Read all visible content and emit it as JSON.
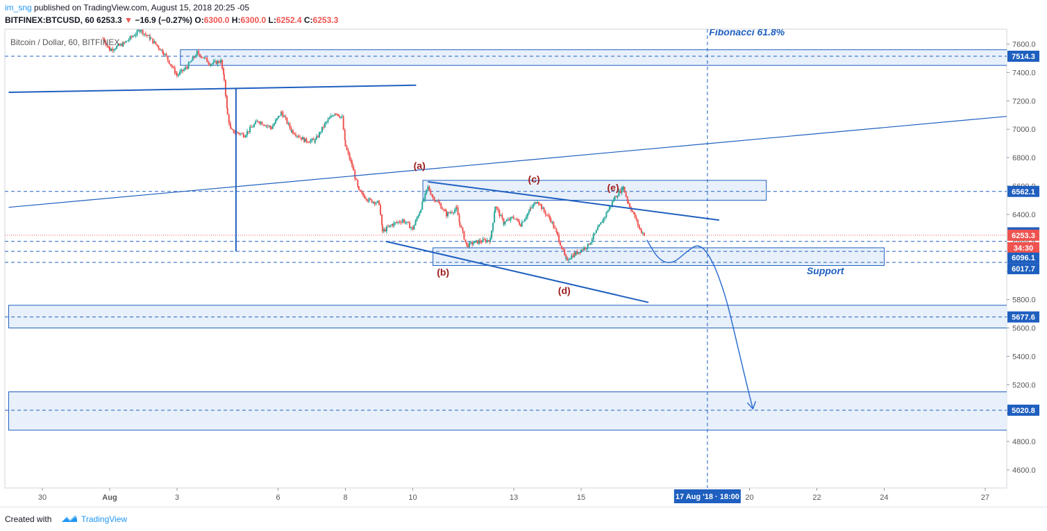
{
  "header": {
    "author": "im_sng",
    "published_text": "published on TradingView.com, August 15, 2018 20:25 -05",
    "symbol_line": "BITFINEX:BTCUSD, 60",
    "last": "6253.3",
    "change_arrow": "▼",
    "change": "−16.9 (−0.27%)",
    "o_label": "O:",
    "o_value": "6300.0",
    "h_label": "H:",
    "h_value": "6300.0",
    "l_label": "L:",
    "l_value": "6252.4",
    "c_label": "C:",
    "c_value": "6253.3"
  },
  "footer": {
    "created_with": "Created with",
    "brand": "TradingView"
  },
  "colors": {
    "up": "#26a69a",
    "down": "#ef5350",
    "drawing": "#1e5fbf",
    "zone_fill": "#e8f0fb",
    "red_label": "#9c1a1a"
  },
  "chart_data": {
    "type": "candlestick",
    "title": "Bitcoin / Dollar, 60, BITFINEX",
    "y_ticks": [
      4600,
      4800,
      5000,
      5200,
      5400,
      5600,
      5800,
      6000,
      6200,
      6400,
      6600,
      6800,
      7000,
      7200,
      7400,
      7600
    ],
    "x_ticks": [
      {
        "label": "30",
        "day": 30
      },
      {
        "label": "Aug",
        "day": 32
      },
      {
        "label": "3",
        "day": 34
      },
      {
        "label": "6",
        "day": 37
      },
      {
        "label": "8",
        "day": 39
      },
      {
        "label": "10",
        "day": 41
      },
      {
        "label": "13",
        "day": 44
      },
      {
        "label": "15",
        "day": 46
      },
      {
        "label": "20",
        "day": 51
      },
      {
        "label": "22",
        "day": 53
      },
      {
        "label": "24",
        "day": 55
      },
      {
        "label": "27",
        "day": 58
      }
    ],
    "price_path": [
      [
        31.8,
        7640
      ],
      [
        32.0,
        7560
      ],
      [
        32.4,
        7600
      ],
      [
        32.9,
        7700
      ],
      [
        33.2,
        7640
      ],
      [
        33.6,
        7540
      ],
      [
        34.0,
        7380
      ],
      [
        34.3,
        7440
      ],
      [
        34.6,
        7540
      ],
      [
        35.0,
        7460
      ],
      [
        35.3,
        7480
      ],
      [
        35.4,
        7350
      ],
      [
        35.5,
        7100
      ],
      [
        35.6,
        6990
      ],
      [
        36.0,
        6960
      ],
      [
        36.4,
        7060
      ],
      [
        36.8,
        7010
      ],
      [
        37.1,
        7120
      ],
      [
        37.4,
        6990
      ],
      [
        37.8,
        6920
      ],
      [
        38.1,
        6920
      ],
      [
        38.4,
        7040
      ],
      [
        38.7,
        7120
      ],
      [
        38.9,
        7080
      ],
      [
        39.0,
        6880
      ],
      [
        39.2,
        6740
      ],
      [
        39.4,
        6560
      ],
      [
        39.7,
        6500
      ],
      [
        40.0,
        6480
      ],
      [
        40.1,
        6280
      ],
      [
        40.4,
        6330
      ],
      [
        40.7,
        6360
      ],
      [
        41.0,
        6300
      ],
      [
        41.2,
        6420
      ],
      [
        41.45,
        6590
      ],
      [
        41.6,
        6520
      ],
      [
        41.8,
        6470
      ],
      [
        42.0,
        6400
      ],
      [
        42.3,
        6440
      ],
      [
        42.4,
        6330
      ],
      [
        42.6,
        6180
      ],
      [
        42.8,
        6200
      ],
      [
        43.0,
        6210
      ],
      [
        43.3,
        6220
      ],
      [
        43.45,
        6460
      ],
      [
        43.7,
        6340
      ],
      [
        44.0,
        6380
      ],
      [
        44.2,
        6330
      ],
      [
        44.5,
        6440
      ],
      [
        44.7,
        6500
      ],
      [
        44.9,
        6420
      ],
      [
        45.1,
        6360
      ],
      [
        45.3,
        6250
      ],
      [
        45.55,
        6080
      ],
      [
        45.8,
        6120
      ],
      [
        46.0,
        6150
      ],
      [
        46.2,
        6180
      ],
      [
        46.5,
        6300
      ],
      [
        46.8,
        6430
      ],
      [
        47.0,
        6520
      ],
      [
        47.25,
        6590
      ],
      [
        47.4,
        6480
      ],
      [
        47.6,
        6380
      ],
      [
        47.75,
        6290
      ],
      [
        47.9,
        6253
      ]
    ],
    "last_price": 6253.3,
    "price_labels": [
      {
        "value": 7514.3,
        "text": "7514.3"
      },
      {
        "value": 6562.1,
        "text": "6562.1"
      },
      {
        "value": 6270.2,
        "text": "6270.2"
      },
      {
        "value": 6253.3,
        "text": "6253.3"
      },
      {
        "value": 6162.2,
        "text": "6162.2"
      },
      {
        "value": 6096.1,
        "text": "6096.1"
      },
      {
        "value": 6017.7,
        "text": "6017.7"
      },
      {
        "value": 5677.6,
        "text": "5677.6"
      },
      {
        "value": 5020.8,
        "text": "5020.8"
      }
    ],
    "countdown": "34:30",
    "zones": [
      {
        "from_day": 34.1,
        "to_day": 60.0,
        "low": 7450,
        "high": 7560
      },
      {
        "from_day": 41.3,
        "to_day": 51.5,
        "low": 6500,
        "high": 6640
      },
      {
        "from_day": 41.6,
        "to_day": 55.0,
        "low": 6040,
        "high": 6165
      },
      {
        "from_day": 29.0,
        "to_day": 59.2,
        "low": 5600,
        "high": 5760
      },
      {
        "from_day": 29.0,
        "to_day": 60.0,
        "low": 4880,
        "high": 5150
      }
    ],
    "dashed_levels": [
      7514.3,
      6562.1,
      6210,
      6140,
      6062,
      5677.6,
      5020.8
    ],
    "trendlines": [
      {
        "from": [
          29.0,
          7260
        ],
        "to": [
          41.1,
          7310
        ],
        "width": 2
      },
      {
        "from": [
          29.0,
          6450
        ],
        "to": [
          60.0,
          7120
        ],
        "width": 1.2
      },
      {
        "from": [
          41.45,
          6630
        ],
        "to": [
          50.1,
          6360
        ],
        "width": 2
      },
      {
        "from": [
          40.2,
          6210
        ],
        "to": [
          48.0,
          5780
        ],
        "width": 2
      },
      {
        "from": [
          35.75,
          7290
        ],
        "to": [
          35.75,
          6140
        ],
        "width": 2
      }
    ],
    "projection": [
      [
        47.95,
        6220
      ],
      [
        48.3,
        6080
      ],
      [
        48.7,
        6050
      ],
      [
        49.1,
        6130
      ],
      [
        49.5,
        6200
      ],
      [
        49.9,
        6080
      ],
      [
        50.3,
        5820
      ],
      [
        50.6,
        5520
      ],
      [
        50.9,
        5220
      ],
      [
        51.1,
        5030
      ]
    ],
    "wave_labels": [
      {
        "text": "(a)",
        "day": 41.2,
        "price": 6720
      },
      {
        "text": "(b)",
        "day": 41.9,
        "price": 5970
      },
      {
        "text": "(c)",
        "day": 44.6,
        "price": 6625
      },
      {
        "text": "(d)",
        "day": 45.5,
        "price": 5840
      },
      {
        "text": "(e)",
        "day": 46.95,
        "price": 6565
      }
    ],
    "annotations": [
      {
        "text": "Fibonacci 61.8%",
        "day": 49.8,
        "price": 7660
      },
      {
        "text": "Support",
        "day": 52.7,
        "price": 5980
      }
    ],
    "vertical_marker": {
      "day": 49.75,
      "label": "17 Aug '18 · 18:00"
    }
  }
}
